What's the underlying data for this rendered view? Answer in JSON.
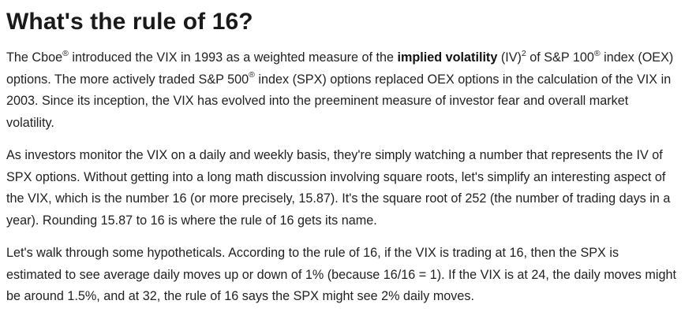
{
  "article": {
    "title": "What's the rule of 16?",
    "p1": {
      "a": "The Cboe",
      "reg1": "®",
      "b": " introduced the VIX in 1993 as a weighted measure of the ",
      "bold": "implied volatility",
      "c": " (IV)",
      "sq": "2",
      "d": " of S&P 100",
      "reg2": "®",
      "e": " index (OEX) options. The more actively traded S&P 500",
      "reg3": "®",
      "f": " index (SPX) options replaced OEX options in the calculation of the VIX in 2003. Since its inception, the VIX has evolved into the preeminent measure of investor fear and overall market volatility."
    },
    "p2": "As investors monitor the VIX on a daily and weekly basis, they're simply watching a number that represents the IV of SPX options. Without getting into a long math discussion involving square roots, let's simplify an interesting aspect of the VIX, which is the number 16 (or more precisely, 15.87). It's the square root of 252 (the number of trading days in a year). Rounding 15.87 to 16 is where the rule of 16 gets its name.",
    "p3": "Let's walk through some hypotheticals. According to the rule of 16, if the VIX is trading at 16, then the SPX is estimated to see average daily moves up or down of 1% (because 16/16 = 1). If the VIX is at 24, the daily moves might be around 1.5%, and at 32, the rule of 16 says the SPX might see 2% daily moves."
  }
}
